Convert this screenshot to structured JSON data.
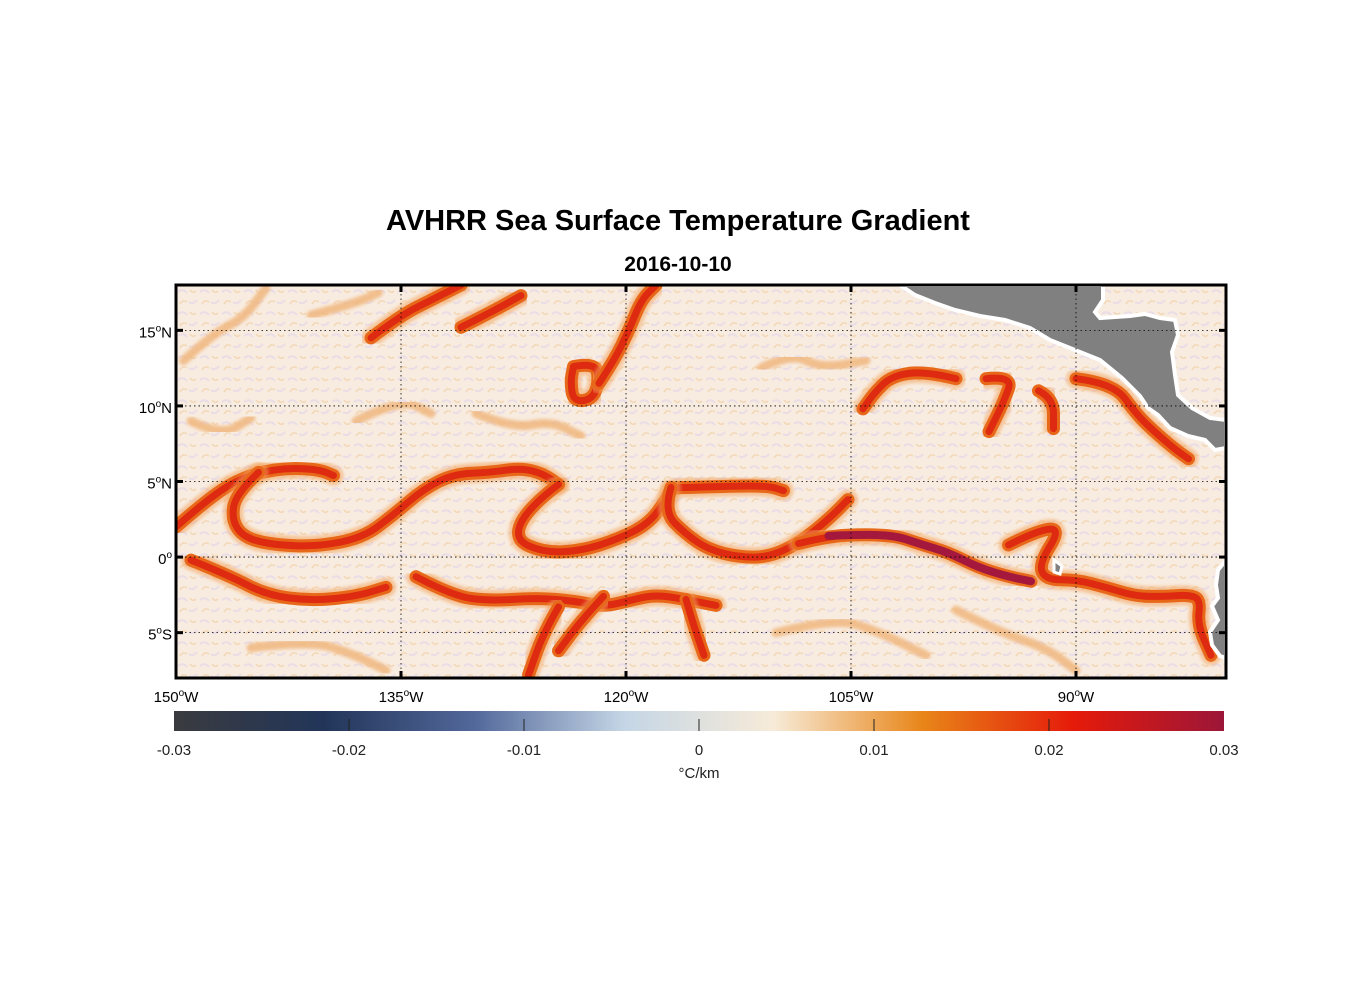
{
  "title": "AVHRR Sea Surface Temperature Gradient",
  "subtitle": "2016-10-10",
  "map": {
    "lon_range": [
      -150,
      -80
    ],
    "lat_range": [
      -8,
      18
    ],
    "lat_ticks": [
      {
        "value": 15,
        "deg": "15",
        "hemi": "N"
      },
      {
        "value": 10,
        "deg": "10",
        "hemi": "N"
      },
      {
        "value": 5,
        "deg": "5",
        "hemi": "N"
      },
      {
        "value": 0,
        "deg": "0",
        "hemi": ""
      },
      {
        "value": -5,
        "deg": "5",
        "hemi": "S"
      }
    ],
    "lon_ticks": [
      {
        "value": -150,
        "deg": "150",
        "hemi": "W"
      },
      {
        "value": -135,
        "deg": "135",
        "hemi": "W"
      },
      {
        "value": -120,
        "deg": "120",
        "hemi": "W"
      },
      {
        "value": -105,
        "deg": "105",
        "hemi": "W"
      },
      {
        "value": -90,
        "deg": "90",
        "hemi": "W"
      }
    ],
    "land_color": "#808080",
    "ocean_background": "#f8ece0",
    "fronts": [
      [
        [
          -150,
          2
        ],
        [
          -148.5,
          3.3
        ],
        [
          -146.5,
          4.8
        ],
        [
          -144.5,
          5.6
        ],
        [
          -142.5,
          5.9
        ],
        [
          -140.5,
          5.8
        ],
        [
          -139.5,
          5.4
        ]
      ],
      [
        [
          -144.5,
          5.6
        ],
        [
          -146,
          4.2
        ],
        [
          -146.3,
          2.5
        ],
        [
          -145.5,
          1.3
        ],
        [
          -143.5,
          0.8
        ],
        [
          -140.5,
          0.7
        ],
        [
          -137.5,
          1.3
        ],
        [
          -135.5,
          2.8
        ],
        [
          -133.5,
          4.5
        ],
        [
          -131.5,
          5.5
        ],
        [
          -129,
          5.6
        ],
        [
          -127,
          5.9
        ],
        [
          -125.5,
          5.5
        ],
        [
          -124.5,
          4.8
        ]
      ],
      [
        [
          -124.5,
          4.8
        ],
        [
          -126.5,
          3.3
        ],
        [
          -127.5,
          1.2
        ],
        [
          -125.5,
          0.3
        ],
        [
          -123,
          0.4
        ],
        [
          -120.5,
          1.2
        ],
        [
          -118.5,
          2.2
        ],
        [
          -117.3,
          3.8
        ],
        [
          -117,
          4.6
        ],
        [
          -115.5,
          4.6
        ],
        [
          -113,
          4.7
        ],
        [
          -110.5,
          4.7
        ],
        [
          -109.5,
          4.4
        ]
      ],
      [
        [
          -117,
          4.6
        ],
        [
          -117.5,
          3
        ],
        [
          -116,
          1.5
        ],
        [
          -114.5,
          0.5
        ],
        [
          -112.5,
          0.0
        ],
        [
          -110.5,
          0.0
        ],
        [
          -108.5,
          0.9
        ],
        [
          -106.5,
          2.5
        ],
        [
          -105.2,
          3.8
        ]
      ],
      [
        [
          -108.5,
          0.9
        ],
        [
          -106.5,
          1.4
        ],
        [
          -104,
          1.5
        ],
        [
          -102,
          1.4
        ],
        [
          -100.5,
          0.9
        ],
        [
          -98.5,
          0.3
        ],
        [
          -96.5,
          -0.7
        ],
        [
          -94.5,
          -1.3
        ],
        [
          -93,
          -1.6
        ]
      ],
      [
        [
          -94.5,
          0.8
        ],
        [
          -92.5,
          1.8
        ],
        [
          -91,
          1.9
        ],
        [
          -92.5,
          -0.5
        ],
        [
          -92,
          -1.5
        ],
        [
          -90,
          -1.5
        ],
        [
          -88,
          -2
        ],
        [
          -86,
          -2.6
        ],
        [
          -84,
          -2.6
        ],
        [
          -82.5,
          -2.5
        ],
        [
          -81.7,
          -2.8
        ],
        [
          -81.9,
          -4.5
        ],
        [
          -81,
          -6.5
        ]
      ],
      [
        [
          -149,
          -0.2
        ],
        [
          -146.5,
          -1.2
        ],
        [
          -144,
          -2.5
        ],
        [
          -141,
          -2.9
        ],
        [
          -138,
          -2.6
        ],
        [
          -136,
          -2
        ]
      ],
      [
        [
          -134,
          -1.3
        ],
        [
          -131.5,
          -2.6
        ],
        [
          -129,
          -2.9
        ],
        [
          -126,
          -2.7
        ],
        [
          -123.5,
          -2.9
        ],
        [
          -121.5,
          -3.3
        ],
        [
          -119.5,
          -2.8
        ],
        [
          -118,
          -2.5
        ],
        [
          -116,
          -2.8
        ],
        [
          -114,
          -3.2
        ]
      ],
      [
        [
          -124.5,
          -3.3
        ],
        [
          -125.5,
          -5
        ],
        [
          -126.5,
          -7.8
        ]
      ],
      [
        [
          -121.5,
          -2.6
        ],
        [
          -123,
          -4.2
        ],
        [
          -124.5,
          -6.2
        ]
      ],
      [
        [
          -116,
          -2.8
        ],
        [
          -115.5,
          -4.5
        ],
        [
          -114.8,
          -6.5
        ]
      ],
      [
        [
          -98,
          11.8
        ],
        [
          -100,
          12.3
        ],
        [
          -102.3,
          12.0
        ],
        [
          -103.5,
          10.8
        ],
        [
          -104.2,
          9.8
        ]
      ],
      [
        [
          -96,
          11.8
        ],
        [
          -94.2,
          12.0
        ],
        [
          -94.8,
          10.3
        ],
        [
          -95.8,
          8.3
        ]
      ],
      [
        [
          -92.5,
          11
        ],
        [
          -91.5,
          10.5
        ],
        [
          -91.5,
          8.5
        ]
      ],
      [
        [
          -90,
          11.8
        ],
        [
          -87.5,
          11.5
        ],
        [
          -86,
          9.5
        ],
        [
          -85,
          8.5
        ],
        [
          -83.5,
          7.2
        ],
        [
          -82.5,
          6.5
        ]
      ],
      [
        [
          -123.5,
          12.6
        ],
        [
          -122,
          12.9
        ],
        [
          -121.8,
          11.5
        ],
        [
          -122.3,
          10.4
        ],
        [
          -123.5,
          10.3
        ],
        [
          -123.7,
          11.6
        ],
        [
          -123.5,
          12.6
        ]
      ],
      [
        [
          -121.8,
          11.5
        ],
        [
          -120.8,
          13
        ],
        [
          -119.8,
          15
        ],
        [
          -119,
          17
        ],
        [
          -118,
          18
        ]
      ],
      [
        [
          -137,
          14.5
        ],
        [
          -135,
          16
        ],
        [
          -133,
          17
        ],
        [
          -131,
          18
        ]
      ],
      [
        [
          -131,
          15.2
        ],
        [
          -129,
          16.2
        ],
        [
          -127,
          17.3
        ]
      ]
    ],
    "weak_fronts": [
      [
        [
          -149.5,
          13
        ],
        [
          -147.5,
          14.8
        ],
        [
          -145.5,
          15.8
        ],
        [
          -144,
          17.8
        ]
      ],
      [
        [
          -141,
          16
        ],
        [
          -138,
          16.8
        ],
        [
          -136.5,
          17.5
        ]
      ],
      [
        [
          -130,
          9.5
        ],
        [
          -127.5,
          8.5
        ],
        [
          -125,
          9
        ],
        [
          -123,
          8
        ]
      ],
      [
        [
          -111,
          12.5
        ],
        [
          -109,
          13.5
        ],
        [
          -107,
          12.5
        ],
        [
          -104,
          13
        ]
      ],
      [
        [
          -110,
          -5
        ],
        [
          -106,
          -4
        ],
        [
          -103,
          -5
        ],
        [
          -100,
          -6.5
        ]
      ],
      [
        [
          -98,
          -3.5
        ],
        [
          -95,
          -5
        ],
        [
          -92,
          -6
        ],
        [
          -90,
          -7.5
        ]
      ],
      [
        [
          -145,
          -6
        ],
        [
          -141,
          -5.5
        ],
        [
          -138,
          -6.5
        ],
        [
          -136,
          -7.5
        ]
      ],
      [
        [
          -138,
          9
        ],
        [
          -135,
          10.5
        ],
        [
          -133,
          9.5
        ]
      ],
      [
        [
          -149,
          9
        ],
        [
          -147,
          8
        ],
        [
          -145,
          9.2
        ]
      ]
    ]
  },
  "colorbar": {
    "label": "°C/km",
    "ticks": [
      "-0.03",
      "-0.02",
      "-0.01",
      "0",
      "0.01",
      "0.02",
      "0.03"
    ],
    "min": -0.03,
    "max": 0.03,
    "colors": [
      "#3a3b3f",
      "#223559",
      "#52689a",
      "#c5d6e6",
      "#f7ebd8",
      "#e88518",
      "#e51a0a",
      "#9c1638"
    ]
  }
}
